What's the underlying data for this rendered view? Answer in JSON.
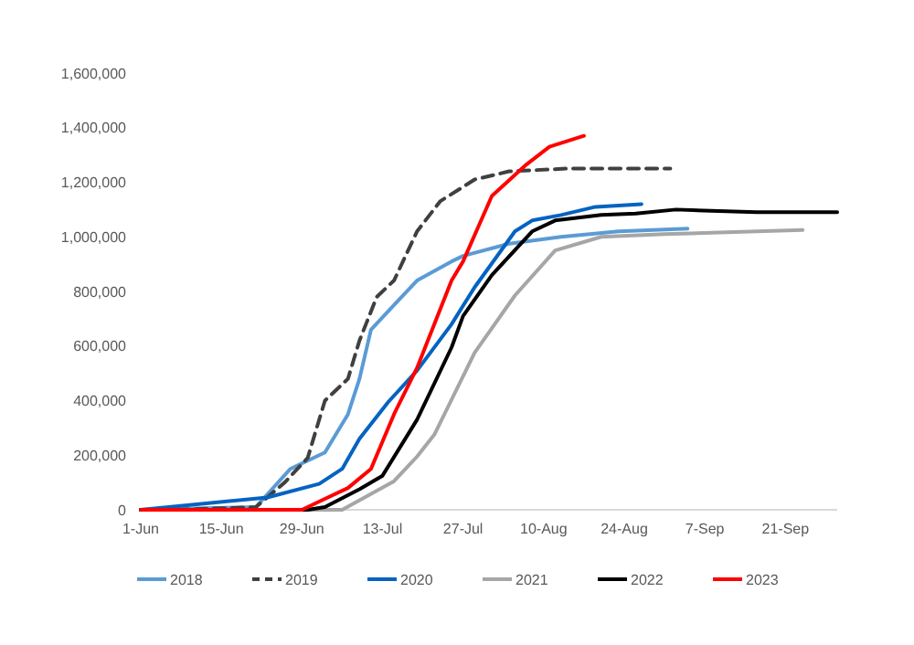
{
  "chart_data": {
    "type": "line",
    "xlim": [
      "--06-01",
      "--09-30"
    ],
    "ylim": [
      0,
      1600000
    ],
    "xticks": [
      {
        "value": "--06-01",
        "label": "1-Jun"
      },
      {
        "value": "--06-15",
        "label": "15-Jun"
      },
      {
        "value": "--06-29",
        "label": "29-Jun"
      },
      {
        "value": "--07-13",
        "label": "13-Jul"
      },
      {
        "value": "--07-27",
        "label": "27-Jul"
      },
      {
        "value": "--08-10",
        "label": "10-Aug"
      },
      {
        "value": "--08-24",
        "label": "24-Aug"
      },
      {
        "value": "--09-07",
        "label": "7-Sep"
      },
      {
        "value": "--09-21",
        "label": "21-Sep"
      }
    ],
    "yticks": [
      0,
      {
        "value": 200000,
        "label": "200,000"
      },
      {
        "value": 400000,
        "label": "400,000"
      },
      {
        "value": 600000,
        "label": "600,000"
      },
      {
        "value": 800000,
        "label": "800,000"
      },
      {
        "value": 1000000,
        "label": "1,000,000"
      },
      {
        "value": 1200000,
        "label": "1,200,000"
      },
      {
        "value": 1400000,
        "label": "1,400,000"
      },
      {
        "value": 1600000,
        "label": "1,600,000"
      }
    ],
    "grid": false,
    "legend": "bottom",
    "marker": "none",
    "series": [
      {
        "name": "2018",
        "color": "#5b9bd5",
        "line_style": "solid",
        "x": [
          "--06-01",
          "--06-21",
          "--06-27",
          "--07-03",
          "--07-07",
          "--07-09",
          "--07-11",
          "--07-15",
          "--07-19",
          "--07-25",
          "--07-27",
          "--08-04",
          "--08-13",
          "--08-23",
          "--09-04"
        ],
        "values": [
          0,
          10000,
          150000,
          210000,
          350000,
          480000,
          660000,
          750000,
          840000,
          910000,
          930000,
          975000,
          1000000,
          1020000,
          1030000
        ]
      },
      {
        "name": "2019",
        "color": "#404040",
        "line_style": "dashed",
        "x": [
          "--06-01",
          "--06-07",
          "--06-21",
          "--06-26",
          "--06-30",
          "--07-03",
          "--07-07",
          "--07-09",
          "--07-12",
          "--07-15",
          "--07-19",
          "--07-23",
          "--07-29",
          "--08-04",
          "--08-14",
          "--09-01"
        ],
        "values": [
          0,
          0,
          10000,
          100000,
          190000,
          400000,
          480000,
          620000,
          780000,
          840000,
          1020000,
          1130000,
          1210000,
          1240000,
          1250000,
          1250000
        ]
      },
      {
        "name": "2020",
        "color": "#0563c1",
        "line_style": "solid",
        "x": [
          "--06-01",
          "--06-23",
          "--07-02",
          "--07-06",
          "--07-09",
          "--07-14",
          "--07-19",
          "--07-25",
          "--07-29",
          "--08-05",
          "--08-08",
          "--08-13",
          "--08-19",
          "--08-27"
        ],
        "values": [
          0,
          45000,
          95000,
          150000,
          260000,
          395000,
          510000,
          680000,
          815000,
          1020000,
          1060000,
          1080000,
          1110000,
          1120000
        ]
      },
      {
        "name": "2021",
        "color": "#a6a6a6",
        "line_style": "solid",
        "x": [
          "--06-01",
          "--07-06",
          "--07-15",
          "--07-19",
          "--07-22",
          "--07-29",
          "--08-05",
          "--08-12",
          "--08-20",
          "--08-31",
          "--09-16",
          "--09-24"
        ],
        "values": [
          0,
          0,
          105000,
          195000,
          275000,
          575000,
          785000,
          950000,
          1000000,
          1010000,
          1020000,
          1025000
        ]
      },
      {
        "name": "2022",
        "color": "#000000",
        "line_style": "solid",
        "x": [
          "--06-01",
          "--06-30",
          "--07-03",
          "--07-09",
          "--07-13",
          "--07-19",
          "--07-25",
          "--07-27",
          "--08-01",
          "--08-08",
          "--08-12",
          "--08-20",
          "--08-26",
          "--09-02",
          "--09-16",
          "--09-30"
        ],
        "values": [
          0,
          0,
          10000,
          75000,
          125000,
          330000,
          595000,
          710000,
          860000,
          1020000,
          1060000,
          1080000,
          1085000,
          1100000,
          1090000,
          1090000
        ]
      },
      {
        "name": "2023",
        "color": "#ff0000",
        "line_style": "solid",
        "x": [
          "--06-01",
          "--06-29",
          "--07-03",
          "--07-07",
          "--07-11",
          "--07-15",
          "--07-19",
          "--07-25",
          "--07-27",
          "--08-01",
          "--08-07",
          "--08-11",
          "--08-17"
        ],
        "values": [
          0,
          0,
          40000,
          80000,
          150000,
          350000,
          520000,
          840000,
          910000,
          1150000,
          1265000,
          1330000,
          1370000
        ]
      }
    ]
  }
}
